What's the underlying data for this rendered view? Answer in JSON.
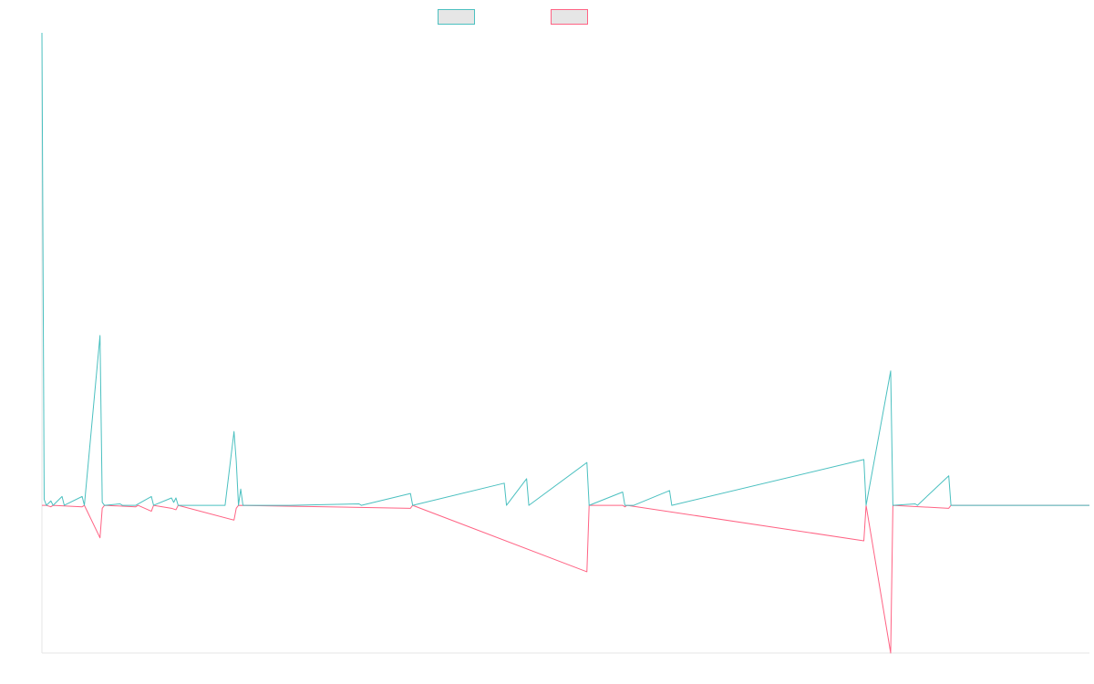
{
  "chart_data": {
    "type": "line",
    "title": "",
    "xlabel": "",
    "ylabel": "",
    "ylim": [
      -100,
      320
    ],
    "xlim": [
      0,
      469
    ],
    "legend_position": "top-center",
    "grid": false,
    "axes_color": "#e5e5e5",
    "baseline": 0,
    "series": [
      {
        "name": "",
        "color": "#4bc0c0",
        "legend_fill": "#e6e6e6",
        "points": [
          [
            0,
            320
          ],
          [
            1,
            4
          ],
          [
            2,
            0
          ],
          [
            4,
            3
          ],
          [
            5,
            0
          ],
          [
            9,
            6
          ],
          [
            10,
            0
          ],
          [
            18,
            6
          ],
          [
            19,
            0
          ],
          [
            26,
            115
          ],
          [
            27,
            2
          ],
          [
            28,
            0
          ],
          [
            35,
            1
          ],
          [
            36,
            0
          ],
          [
            42,
            0
          ],
          [
            49,
            6
          ],
          [
            50,
            0
          ],
          [
            58,
            5
          ],
          [
            59,
            2
          ],
          [
            60,
            5
          ],
          [
            61,
            0
          ],
          [
            82,
            0
          ],
          [
            86,
            50
          ],
          [
            87,
            30
          ],
          [
            88,
            0
          ],
          [
            89,
            11
          ],
          [
            90,
            0
          ],
          [
            111,
            0
          ],
          [
            142,
            1
          ],
          [
            143,
            0
          ],
          [
            165,
            8
          ],
          [
            166,
            0
          ],
          [
            207,
            15
          ],
          [
            208,
            0
          ],
          [
            217,
            18
          ],
          [
            218,
            0
          ],
          [
            244,
            29
          ],
          [
            245,
            0
          ],
          [
            260,
            9
          ],
          [
            261,
            0
          ],
          [
            265,
            0
          ],
          [
            281,
            10
          ],
          [
            282,
            0
          ],
          [
            368,
            31
          ],
          [
            369,
            0
          ],
          [
            380,
            91
          ],
          [
            381,
            0
          ],
          [
            391,
            1
          ],
          [
            392,
            0
          ],
          [
            406,
            20
          ],
          [
            407,
            0
          ],
          [
            469,
            0
          ]
        ]
      },
      {
        "name": "",
        "color": "#ff6384",
        "legend_fill": "#e6e6e6",
        "points": [
          [
            0,
            0
          ],
          [
            2,
            0
          ],
          [
            4,
            -1
          ],
          [
            5,
            0
          ],
          [
            18,
            -1
          ],
          [
            19,
            0
          ],
          [
            26,
            -22
          ],
          [
            27,
            -2
          ],
          [
            28,
            0
          ],
          [
            42,
            -1
          ],
          [
            43,
            0
          ],
          [
            49,
            -4
          ],
          [
            50,
            0
          ],
          [
            58,
            -2
          ],
          [
            60,
            -3
          ],
          [
            61,
            0
          ],
          [
            86,
            -10
          ],
          [
            87,
            -2
          ],
          [
            88,
            0
          ],
          [
            165,
            -2
          ],
          [
            166,
            0
          ],
          [
            244,
            -45
          ],
          [
            245,
            0
          ],
          [
            260,
            0
          ],
          [
            261,
            -1
          ],
          [
            262,
            0
          ],
          [
            368,
            -24
          ],
          [
            369,
            0
          ],
          [
            380,
            -100
          ],
          [
            381,
            0
          ],
          [
            406,
            -2
          ],
          [
            407,
            0
          ],
          [
            469,
            0
          ]
        ]
      }
    ]
  }
}
